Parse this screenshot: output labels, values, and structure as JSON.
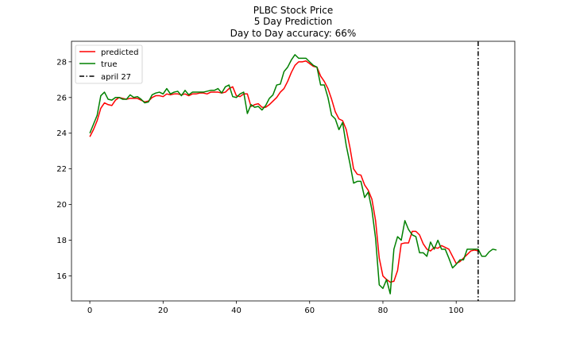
{
  "chart_data": {
    "type": "line",
    "title_lines": [
      "PLBC Stock Price",
      "5 Day Prediction",
      "Day to Day accuracy: 66%"
    ],
    "xlabel": "",
    "ylabel": "",
    "xlim": [
      -5,
      116
    ],
    "ylim": [
      14.6,
      29.15
    ],
    "xticks": [
      0,
      20,
      40,
      60,
      80,
      100
    ],
    "yticks": [
      16,
      18,
      20,
      22,
      24,
      26,
      28
    ],
    "grid": false,
    "legend_position": "upper-left",
    "series": [
      {
        "name": "predicted",
        "color": "#ff0000",
        "x": [
          0,
          1,
          2,
          3,
          4,
          5,
          6,
          7,
          8,
          9,
          10,
          11,
          12,
          13,
          14,
          15,
          16,
          17,
          18,
          19,
          20,
          21,
          22,
          23,
          24,
          25,
          26,
          27,
          28,
          29,
          30,
          31,
          32,
          33,
          34,
          35,
          36,
          37,
          38,
          39,
          40,
          41,
          42,
          43,
          44,
          45,
          46,
          47,
          48,
          49,
          50,
          51,
          52,
          53,
          54,
          55,
          56,
          57,
          58,
          59,
          60,
          61,
          62,
          63,
          64,
          65,
          66,
          67,
          68,
          69,
          70,
          71,
          72,
          73,
          74,
          75,
          76,
          77,
          78,
          79,
          80,
          81,
          82,
          83,
          84,
          85,
          86,
          87,
          88,
          89,
          90,
          91,
          92,
          93,
          94,
          95,
          96,
          97,
          98,
          99,
          100,
          101,
          102,
          103,
          104,
          105,
          106
        ],
        "y": [
          23.8,
          24.2,
          24.7,
          25.4,
          25.7,
          25.6,
          25.55,
          25.85,
          26.0,
          25.95,
          25.9,
          25.95,
          25.95,
          25.95,
          25.85,
          25.75,
          25.8,
          26.0,
          26.1,
          26.1,
          26.05,
          26.2,
          26.15,
          26.2,
          26.2,
          26.15,
          26.2,
          26.1,
          26.2,
          26.2,
          26.25,
          26.25,
          26.2,
          26.3,
          26.3,
          26.3,
          26.25,
          26.3,
          26.5,
          26.6,
          26.1,
          26.05,
          26.2,
          26.2,
          25.5,
          25.6,
          25.65,
          25.45,
          25.45,
          25.6,
          25.8,
          26.0,
          26.3,
          26.5,
          26.9,
          27.4,
          27.8,
          28.0,
          28.0,
          28.05,
          27.9,
          27.75,
          27.7,
          27.2,
          26.9,
          26.5,
          25.9,
          25.2,
          24.8,
          24.7,
          24.2,
          23.2,
          22.0,
          21.7,
          21.65,
          21.1,
          20.8,
          20.3,
          19.1,
          17.0,
          16.0,
          15.8,
          15.65,
          15.7,
          16.3,
          17.8,
          17.85,
          17.85,
          18.5,
          18.5,
          18.3,
          17.8,
          17.5,
          17.4,
          17.6,
          17.55,
          17.7,
          17.6,
          17.5,
          17.1,
          16.7,
          16.8,
          17.0,
          17.2,
          17.4,
          17.45,
          17.4
        ]
      },
      {
        "name": "true",
        "color": "#008000",
        "x": [
          0,
          1,
          2,
          3,
          4,
          5,
          6,
          7,
          8,
          9,
          10,
          11,
          12,
          13,
          14,
          15,
          16,
          17,
          18,
          19,
          20,
          21,
          22,
          23,
          24,
          25,
          26,
          27,
          28,
          29,
          30,
          31,
          32,
          33,
          34,
          35,
          36,
          37,
          38,
          39,
          40,
          41,
          42,
          43,
          44,
          45,
          46,
          47,
          48,
          49,
          50,
          51,
          52,
          53,
          54,
          55,
          56,
          57,
          58,
          59,
          60,
          61,
          62,
          63,
          64,
          65,
          66,
          67,
          68,
          69,
          70,
          71,
          72,
          73,
          74,
          75,
          76,
          77,
          78,
          79,
          80,
          81,
          82,
          83,
          84,
          85,
          86,
          87,
          88,
          89,
          90,
          91,
          92,
          93,
          94,
          95,
          96,
          97,
          98,
          99,
          100,
          101,
          102,
          103,
          104,
          105,
          106,
          107,
          108,
          109,
          110,
          111
        ],
        "y": [
          24.0,
          24.5,
          25.0,
          26.1,
          26.3,
          25.9,
          25.85,
          26.0,
          26.0,
          25.9,
          25.9,
          26.15,
          26.0,
          26.05,
          25.9,
          25.7,
          25.75,
          26.15,
          26.25,
          26.3,
          26.2,
          26.5,
          26.2,
          26.3,
          26.35,
          26.1,
          26.4,
          26.15,
          26.3,
          26.3,
          26.3,
          26.3,
          26.35,
          26.4,
          26.4,
          26.5,
          26.25,
          26.6,
          26.7,
          26.05,
          26.0,
          26.2,
          26.3,
          25.1,
          25.6,
          25.45,
          25.5,
          25.3,
          25.55,
          25.95,
          26.15,
          26.7,
          26.75,
          27.45,
          27.7,
          28.1,
          28.4,
          28.2,
          28.2,
          28.2,
          28.0,
          27.8,
          27.7,
          26.7,
          26.7,
          26.0,
          25.0,
          24.8,
          24.2,
          24.6,
          23.3,
          22.3,
          21.2,
          21.3,
          21.3,
          20.4,
          20.7,
          19.7,
          18.1,
          15.5,
          15.3,
          15.8,
          15.0,
          17.5,
          18.2,
          18.0,
          19.1,
          18.6,
          18.3,
          18.2,
          17.3,
          17.3,
          17.1,
          17.9,
          17.5,
          18.0,
          17.5,
          17.5,
          17.0,
          16.45,
          16.65,
          16.9,
          16.9,
          17.5,
          17.5,
          17.5,
          17.5,
          17.1,
          17.1,
          17.35,
          17.5,
          17.45
        ]
      }
    ],
    "vline": {
      "name": "april 27",
      "x": 106,
      "color": "#000000",
      "style": "dash-dot"
    }
  }
}
